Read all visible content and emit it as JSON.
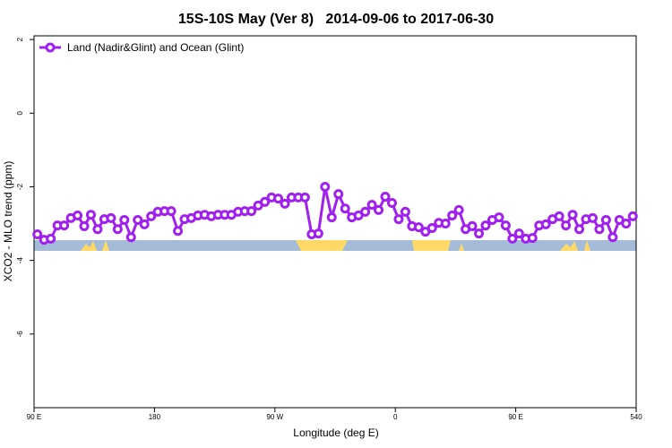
{
  "chart_data": {
    "type": "line",
    "title": "15S-10S May (Ver 8)   2014-09-06 to 2017-06-30",
    "x_label": "Longitude (deg E)",
    "y_label": "XCO2 - MLO trend (ppm)",
    "xlim": [
      90,
      540
    ],
    "xticks": [
      {
        "value": 90,
        "label": "90 E"
      },
      180,
      {
        "value": 270,
        "label": "90 W"
      },
      {
        "value": 360,
        "label": "0"
      },
      {
        "value": 450,
        "label": "90 E"
      },
      540
    ],
    "ylim": [
      -8,
      2.1
    ],
    "yticks": [
      2,
      0,
      -2,
      -4,
      -6
    ],
    "legend": "top-left",
    "x": [
      92.5,
      97.5,
      102.5,
      107.5,
      112.5,
      117.5,
      122.5,
      127.5,
      132.5,
      137.5,
      142.5,
      147.5,
      152.5,
      157.5,
      162.5,
      167.5,
      172.5,
      177.5,
      182.5,
      187.5,
      192.5,
      197.5,
      202.5,
      207.5,
      212.5,
      217.5,
      222.5,
      227.5,
      232.5,
      237.5,
      242.5,
      247.5,
      252.5,
      257.5,
      262.5,
      267.5,
      272.5,
      277.5,
      282.5,
      287.5,
      292.5,
      297.5,
      302.5,
      307.5,
      312.5,
      317.5,
      322.5,
      327.5,
      332.5,
      337.5,
      342.5,
      347.5,
      352.5,
      357.5,
      362.5,
      367.5,
      372.5,
      377.5,
      382.5,
      387.5,
      392.5,
      397.5,
      402.5,
      407.5,
      412.5,
      417.5,
      422.5,
      427.5,
      432.5,
      437.5,
      442.5,
      447.5,
      452.5,
      457.5,
      462.5,
      467.5,
      472.5,
      477.5,
      482.5,
      487.5,
      492.5,
      497.5,
      502.5,
      507.5,
      512.5,
      517.5,
      522.5,
      527.5,
      532.5,
      537.5
    ],
    "series": [
      {
        "name": "Land (Nadir&Glint) and Ocean (Glint)",
        "color": "#a020f0",
        "values": [
          -3.29,
          -3.44,
          -3.41,
          -3.05,
          -3.05,
          -2.85,
          -2.78,
          -3.07,
          -2.76,
          -3.15,
          -2.88,
          -2.85,
          -3.15,
          -2.9,
          -3.37,
          -2.9,
          -3.02,
          -2.8,
          -2.68,
          -2.66,
          -2.66,
          -3.2,
          -2.88,
          -2.85,
          -2.78,
          -2.76,
          -2.8,
          -2.76,
          -2.76,
          -2.76,
          -2.68,
          -2.66,
          -2.66,
          -2.51,
          -2.41,
          -2.29,
          -2.32,
          -2.46,
          -2.29,
          -2.29,
          -2.29,
          -3.29,
          -3.27,
          -2.0,
          -2.83,
          -2.2,
          -2.59,
          -2.83,
          -2.78,
          -2.68,
          -2.49,
          -2.63,
          -2.27,
          -2.44,
          -2.88,
          -2.68,
          -3.07,
          -3.1,
          -3.22,
          -3.12,
          -2.98,
          -3.0,
          -2.78,
          -2.63,
          -3.15,
          -3.07,
          -3.27,
          -3.05,
          -2.9,
          -2.83,
          -3.05,
          -3.41,
          -3.27,
          -3.41,
          -3.39,
          -3.05,
          -3.02,
          -2.88,
          -2.8,
          -3.05,
          -2.76,
          -3.15,
          -2.88,
          -2.85,
          -3.15,
          -2.9,
          -3.37,
          -2.9,
          -3.0,
          -2.8
        ]
      }
    ]
  }
}
